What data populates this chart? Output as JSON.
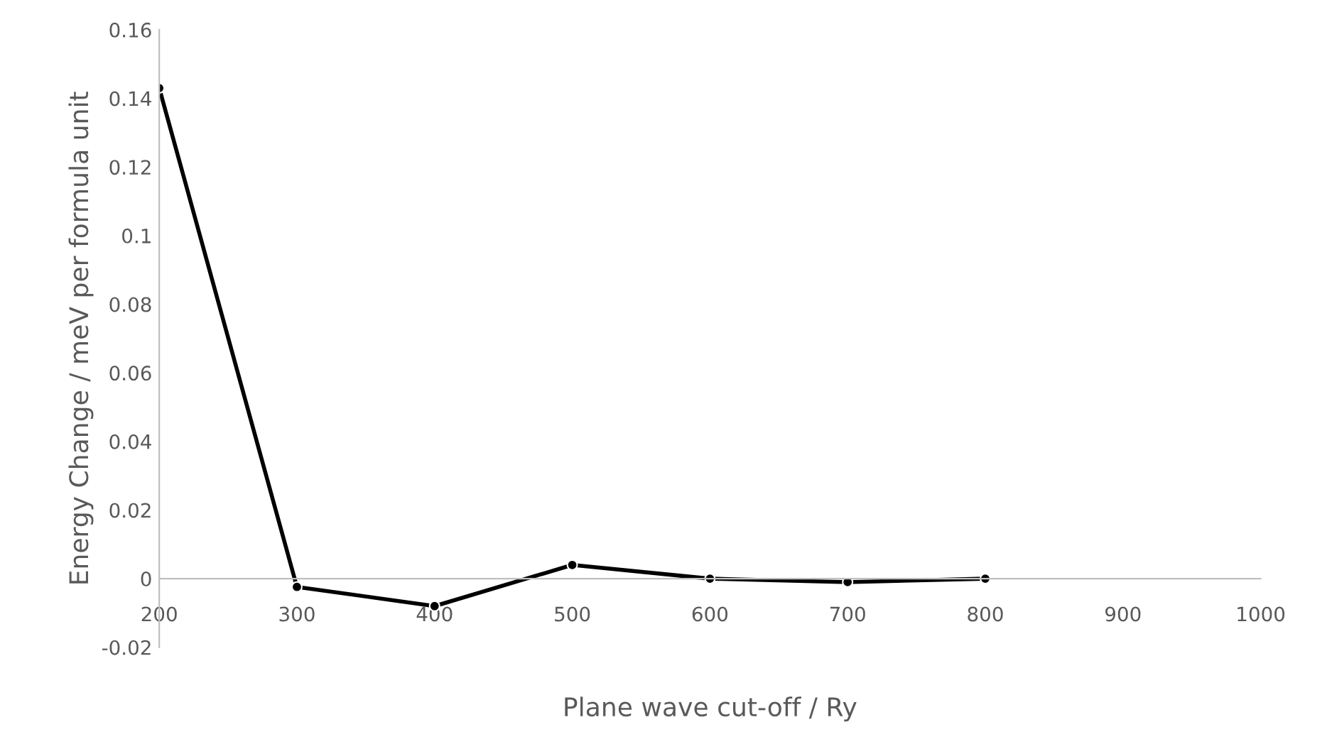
{
  "chart_data": {
    "type": "line",
    "xlabel": "Plane wave cut-off / Ry",
    "ylabel": "Energy Change / meV per formula unit",
    "x": [
      200,
      300,
      400,
      500,
      600,
      700,
      800
    ],
    "series": [
      {
        "color": "#000000",
        "values": [
          0.143,
          -0.0024,
          -0.008,
          0.004,
          0.0,
          -0.001,
          0.0
        ]
      }
    ],
    "xlim": [
      200,
      1000
    ],
    "xticks": [
      200,
      300,
      400,
      500,
      600,
      700,
      800,
      900,
      1000
    ],
    "ylim": [
      -0.02,
      0.16
    ],
    "yticks": [
      -0.02,
      0,
      0.02,
      0.04,
      0.06,
      0.08,
      0.1,
      0.12,
      0.14,
      0.16
    ],
    "marker": "circle",
    "line_style": "solid",
    "grid": false,
    "legend": false
  }
}
